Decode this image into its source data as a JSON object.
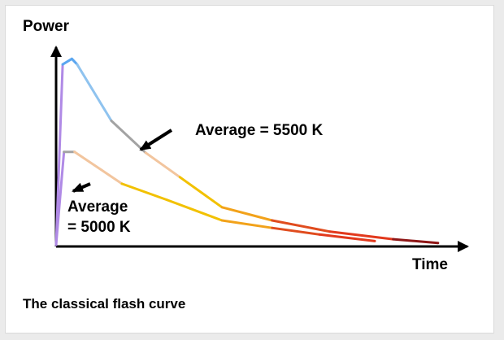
{
  "caption": "The classical flash curve",
  "chart_data": {
    "type": "line",
    "ylabel": "Power",
    "xlabel": "Time",
    "grid": false,
    "series": [
      {
        "points": [
          [
            0,
            0
          ],
          [
            0.25,
            0.96
          ],
          [
            0.6,
            0.99
          ],
          [
            0.8,
            0.96
          ],
          [
            2.1,
            0.66
          ],
          [
            3.4,
            0.49
          ],
          [
            4.7,
            0.36
          ],
          [
            6.3,
            0.2
          ],
          [
            8.2,
            0.13
          ],
          [
            10.4,
            0.07
          ],
          [
            12.8,
            0.03
          ],
          [
            14.5,
            0.01
          ]
        ],
        "colors": [
          "#b08ae6",
          "#5aa6f0",
          "#5aa6f0",
          "#8fc3ef",
          "#a3a3a3",
          "#f2c59e",
          "#f2c100",
          "#f2a21a",
          "#e04c1e",
          "#e2391d",
          "#8e1616"
        ],
        "annotation": {
          "lines": [
            "Average = 5500 K"
          ],
          "arrow_to": [
            3.4,
            0.49
          ]
        }
      },
      {
        "points": [
          [
            0,
            0
          ],
          [
            0.3,
            0.495
          ],
          [
            0.7,
            0.495
          ],
          [
            2.5,
            0.325
          ],
          [
            4.2,
            0.24
          ],
          [
            6.3,
            0.13
          ],
          [
            8.2,
            0.09
          ],
          [
            10,
            0.055
          ],
          [
            12.1,
            0.02
          ]
        ],
        "colors": [
          "#b08ae6",
          "#a3a3a3",
          "#f2c59e",
          "#f2c100",
          "#f2c100",
          "#f2a21a",
          "#e04c1e",
          "#e2391d"
        ],
        "annotation": {
          "lines": [
            "Average",
            "= 5000 K"
          ],
          "arrow_to": [
            0.6,
            0.33
          ]
        }
      }
    ],
    "xlim": [
      0,
      15
    ],
    "ylim": [
      0,
      1
    ],
    "accent_colors": {
      "axis": "#000000",
      "text": "#000000"
    }
  }
}
